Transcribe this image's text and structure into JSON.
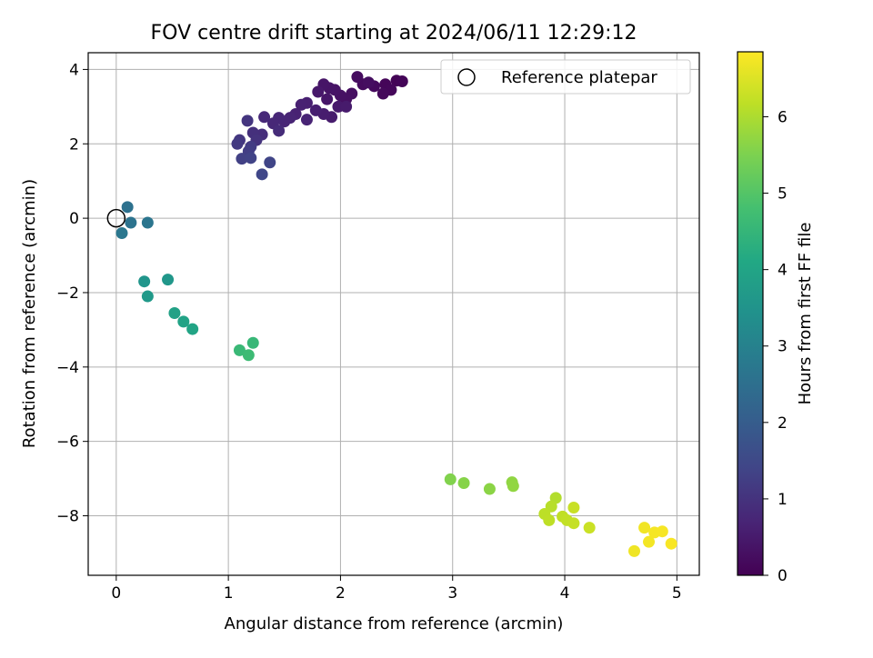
{
  "chart_data": {
    "type": "scatter",
    "title": "FOV centre drift starting at 2024/06/11 12:29:12",
    "xlabel": "Angular distance from reference (arcmin)",
    "ylabel": "Rotation from reference (arcmin)",
    "xlim": [
      -0.25,
      5.2
    ],
    "ylim": [
      -9.6,
      4.45
    ],
    "xticks": [
      0,
      1,
      2,
      3,
      4,
      5
    ],
    "yticks": [
      4,
      2,
      0,
      -2,
      -4,
      -6,
      -8
    ],
    "xtick_labels": [
      "0",
      "1",
      "2",
      "3",
      "4",
      "5"
    ],
    "ytick_labels": [
      "4",
      "2",
      "0",
      "−2",
      "−4",
      "−6",
      "−8"
    ],
    "grid": true,
    "legend": {
      "position": "top-right",
      "entries": [
        {
          "label": "Reference platepar",
          "marker": "open-circle"
        }
      ]
    },
    "reference_point": {
      "x": 0,
      "y": 0
    },
    "colorbar": {
      "label": "Hours from first FF file",
      "colormap": "viridis",
      "range": [
        0,
        6.85
      ],
      "ticks": [
        0,
        1,
        2,
        3,
        4,
        5,
        6
      ],
      "tick_labels": [
        "0",
        "1",
        "2",
        "3",
        "4",
        "5",
        "6"
      ]
    },
    "points": [
      {
        "x": 2.5,
        "y": 3.7,
        "c": 0.05
      },
      {
        "x": 2.55,
        "y": 3.68,
        "c": 0.08
      },
      {
        "x": 2.4,
        "y": 3.6,
        "c": 0.1
      },
      {
        "x": 2.45,
        "y": 3.45,
        "c": 0.12
      },
      {
        "x": 2.38,
        "y": 3.35,
        "c": 0.15
      },
      {
        "x": 2.3,
        "y": 3.55,
        "c": 0.18
      },
      {
        "x": 2.2,
        "y": 3.6,
        "c": 0.2
      },
      {
        "x": 2.15,
        "y": 3.8,
        "c": 0.22
      },
      {
        "x": 2.25,
        "y": 3.65,
        "c": 0.25
      },
      {
        "x": 2.1,
        "y": 3.35,
        "c": 0.28
      },
      {
        "x": 2.05,
        "y": 3.2,
        "c": 0.3
      },
      {
        "x": 2.0,
        "y": 3.3,
        "c": 0.32
      },
      {
        "x": 1.95,
        "y": 3.45,
        "c": 0.35
      },
      {
        "x": 1.9,
        "y": 3.5,
        "c": 0.38
      },
      {
        "x": 1.85,
        "y": 3.6,
        "c": 0.4
      },
      {
        "x": 1.88,
        "y": 3.2,
        "c": 0.42
      },
      {
        "x": 1.8,
        "y": 3.4,
        "c": 0.45
      },
      {
        "x": 1.98,
        "y": 3.0,
        "c": 0.48
      },
      {
        "x": 2.05,
        "y": 3.0,
        "c": 0.5
      },
      {
        "x": 1.92,
        "y": 2.72,
        "c": 0.52
      },
      {
        "x": 1.85,
        "y": 2.8,
        "c": 0.55
      },
      {
        "x": 1.78,
        "y": 2.9,
        "c": 0.58
      },
      {
        "x": 1.7,
        "y": 3.1,
        "c": 0.6
      },
      {
        "x": 1.65,
        "y": 3.05,
        "c": 0.62
      },
      {
        "x": 1.6,
        "y": 2.8,
        "c": 0.65
      },
      {
        "x": 1.7,
        "y": 2.65,
        "c": 0.68
      },
      {
        "x": 1.55,
        "y": 2.7,
        "c": 0.7
      },
      {
        "x": 1.5,
        "y": 2.6,
        "c": 0.72
      },
      {
        "x": 1.45,
        "y": 2.7,
        "c": 0.75
      },
      {
        "x": 1.4,
        "y": 2.55,
        "c": 0.78
      },
      {
        "x": 1.32,
        "y": 2.72,
        "c": 0.8
      },
      {
        "x": 1.45,
        "y": 2.35,
        "c": 0.85
      },
      {
        "x": 1.3,
        "y": 2.25,
        "c": 0.9
      },
      {
        "x": 1.22,
        "y": 2.3,
        "c": 0.95
      },
      {
        "x": 1.25,
        "y": 2.1,
        "c": 1.0
      },
      {
        "x": 1.17,
        "y": 2.62,
        "c": 1.05
      },
      {
        "x": 1.1,
        "y": 2.1,
        "c": 1.1
      },
      {
        "x": 1.08,
        "y": 2.0,
        "c": 1.15
      },
      {
        "x": 1.2,
        "y": 1.92,
        "c": 1.2
      },
      {
        "x": 1.18,
        "y": 1.8,
        "c": 1.25
      },
      {
        "x": 1.12,
        "y": 1.6,
        "c": 1.3
      },
      {
        "x": 1.2,
        "y": 1.62,
        "c": 1.35
      },
      {
        "x": 1.37,
        "y": 1.5,
        "c": 1.4
      },
      {
        "x": 1.3,
        "y": 1.18,
        "c": 1.45
      },
      {
        "x": 0.1,
        "y": 0.3,
        "c": 2.55
      },
      {
        "x": 0.13,
        "y": -0.12,
        "c": 2.6
      },
      {
        "x": 0.28,
        "y": -0.12,
        "c": 2.65
      },
      {
        "x": 0.05,
        "y": -0.4,
        "c": 2.7
      },
      {
        "x": 0.25,
        "y": -1.7,
        "c": 3.55
      },
      {
        "x": 0.46,
        "y": -1.65,
        "c": 3.6
      },
      {
        "x": 0.28,
        "y": -2.1,
        "c": 3.65
      },
      {
        "x": 0.52,
        "y": -2.55,
        "c": 3.9
      },
      {
        "x": 0.6,
        "y": -2.78,
        "c": 3.95
      },
      {
        "x": 0.68,
        "y": -2.98,
        "c": 4.0
      },
      {
        "x": 1.22,
        "y": -3.35,
        "c": 4.55
      },
      {
        "x": 1.1,
        "y": -3.55,
        "c": 4.6
      },
      {
        "x": 1.18,
        "y": -3.68,
        "c": 4.65
      },
      {
        "x": 2.98,
        "y": -7.02,
        "c": 5.55
      },
      {
        "x": 3.1,
        "y": -7.12,
        "c": 5.6
      },
      {
        "x": 3.33,
        "y": -7.28,
        "c": 5.65
      },
      {
        "x": 3.53,
        "y": -7.1,
        "c": 5.7
      },
      {
        "x": 3.54,
        "y": -7.2,
        "c": 5.72
      },
      {
        "x": 3.92,
        "y": -7.52,
        "c": 6.05
      },
      {
        "x": 3.88,
        "y": -7.75,
        "c": 6.1
      },
      {
        "x": 3.82,
        "y": -7.95,
        "c": 6.15
      },
      {
        "x": 3.86,
        "y": -8.12,
        "c": 6.18
      },
      {
        "x": 3.98,
        "y": -8.02,
        "c": 6.2
      },
      {
        "x": 4.02,
        "y": -8.12,
        "c": 6.22
      },
      {
        "x": 4.08,
        "y": -8.2,
        "c": 6.25
      },
      {
        "x": 4.08,
        "y": -7.78,
        "c": 6.28
      },
      {
        "x": 4.22,
        "y": -8.32,
        "c": 6.3
      },
      {
        "x": 4.62,
        "y": -8.95,
        "c": 6.7
      },
      {
        "x": 4.71,
        "y": -8.32,
        "c": 6.72
      },
      {
        "x": 4.75,
        "y": -8.7,
        "c": 6.74
      },
      {
        "x": 4.8,
        "y": -8.45,
        "c": 6.76
      },
      {
        "x": 4.87,
        "y": -8.42,
        "c": 6.78
      },
      {
        "x": 4.95,
        "y": -8.75,
        "c": 6.8
      }
    ]
  }
}
